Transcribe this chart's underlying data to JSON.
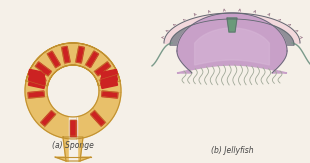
{
  "background_color": "#f5f0e8",
  "label_a": "(a) Sponge",
  "label_b": "(b) Jellyfish",
  "label_fontsize": 5.5,
  "sponge": {
    "wall_color": "#E8C06A",
    "inner_color": "#F2D898",
    "red_color": "#CC2222",
    "outline_color": "#C09030",
    "line_color": "#C09030"
  },
  "jellyfish": {
    "outer_pink": "#F2D8DC",
    "gray_meso": "#909098",
    "purple_body": "#C8A0C8",
    "purple_light": "#D8B8D8",
    "green_man": "#6A9A7A",
    "outline_color": "#606870",
    "tentacle_color": "#A0A898",
    "arrow_color": "#A08090"
  }
}
